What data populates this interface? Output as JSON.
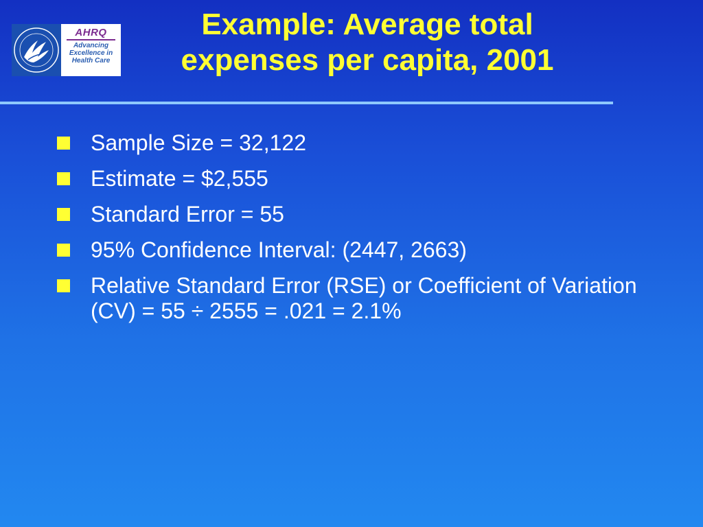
{
  "slide": {
    "title_line1": "Example: Average total",
    "title_line2": "expenses per capita, 2001",
    "bullets": [
      "Sample Size = 32,122",
      "Estimate = $2,555",
      "Standard Error = 55",
      "95% Confidence Interval:  (2447, 2663)",
      "Relative Standard Error (RSE) or Coefficient of Variation (CV) = 55 ÷ 2555 = .021 = 2.1%"
    ]
  },
  "logo": {
    "ahrq_name": "AHRQ",
    "ahrq_tagline_line1": "Advancing",
    "ahrq_tagline_line2": "Excellence in",
    "ahrq_tagline_line3": "Health Care",
    "hhs_seal_icon": "hhs-eagle-seal-icon"
  },
  "colors": {
    "title": "#ffff33",
    "bullet_text": "#ffffff",
    "bullet_marker": "#ffff33",
    "divider": "#8ec8ff",
    "background_top": "#1330c2",
    "background_bottom": "#2288f0",
    "ahrq_purple": "#7b2b8f"
  }
}
